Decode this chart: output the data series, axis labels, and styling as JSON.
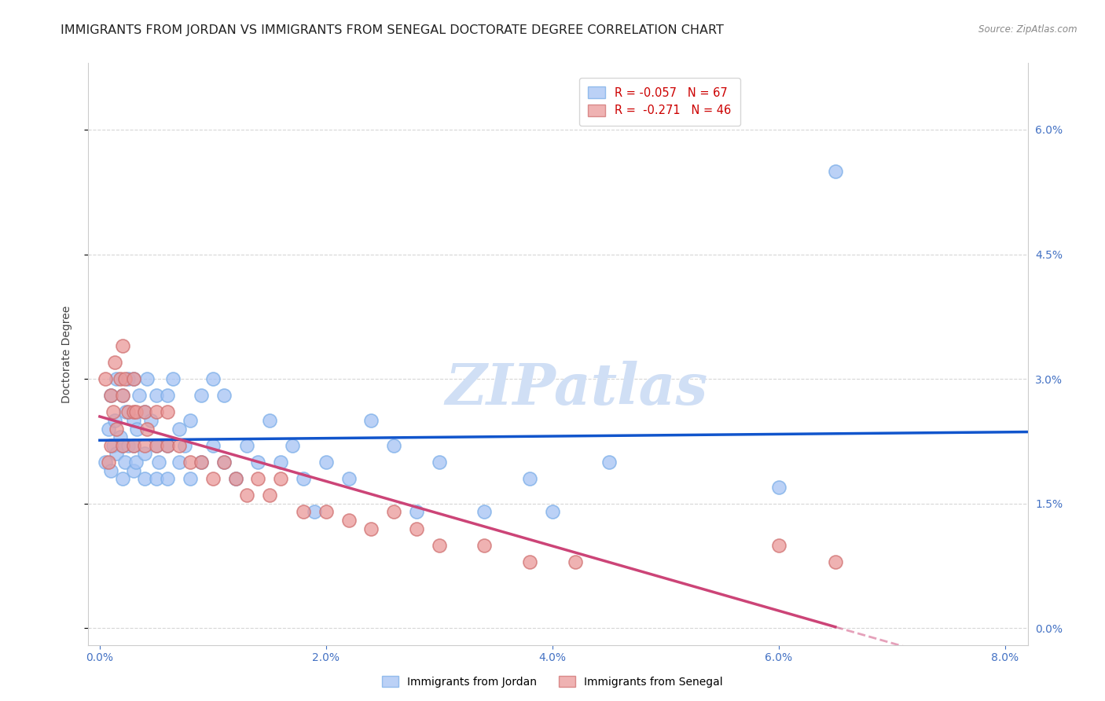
{
  "title": "IMMIGRANTS FROM JORDAN VS IMMIGRANTS FROM SENEGAL DOCTORATE DEGREE CORRELATION CHART",
  "source": "Source: ZipAtlas.com",
  "ylabel": "Doctorate Degree",
  "xlabel_ticks": [
    "0.0%",
    "2.0%",
    "4.0%",
    "6.0%",
    "8.0%"
  ],
  "xlabel_vals": [
    0.0,
    0.02,
    0.04,
    0.06,
    0.08
  ],
  "ytick_labels": [
    "0.0%",
    "1.5%",
    "3.0%",
    "4.5%",
    "6.0%"
  ],
  "ytick_vals": [
    0.0,
    0.015,
    0.03,
    0.045,
    0.06
  ],
  "xlim": [
    -0.001,
    0.082
  ],
  "ylim": [
    -0.002,
    0.068
  ],
  "jordan_color": "#a4c2f4",
  "senegal_color": "#ea9999",
  "jordan_R": -0.057,
  "jordan_N": 67,
  "senegal_R": -0.271,
  "senegal_N": 46,
  "legend_label_jordan": "Immigrants from Jordan",
  "legend_label_senegal": "Immigrants from Senegal",
  "watermark": "ZIPatlas",
  "jordan_x": [
    0.0005,
    0.0008,
    0.001,
    0.001,
    0.0012,
    0.0013,
    0.0015,
    0.0015,
    0.0018,
    0.002,
    0.002,
    0.002,
    0.0022,
    0.0023,
    0.0025,
    0.0025,
    0.003,
    0.003,
    0.003,
    0.003,
    0.0032,
    0.0033,
    0.0035,
    0.004,
    0.004,
    0.004,
    0.0042,
    0.0045,
    0.005,
    0.005,
    0.005,
    0.0052,
    0.006,
    0.006,
    0.006,
    0.0065,
    0.007,
    0.007,
    0.0075,
    0.008,
    0.008,
    0.009,
    0.009,
    0.01,
    0.01,
    0.011,
    0.011,
    0.012,
    0.013,
    0.014,
    0.015,
    0.016,
    0.017,
    0.018,
    0.019,
    0.02,
    0.022,
    0.024,
    0.026,
    0.028,
    0.03,
    0.034,
    0.038,
    0.04,
    0.045,
    0.06,
    0.065
  ],
  "jordan_y": [
    0.02,
    0.024,
    0.019,
    0.028,
    0.022,
    0.025,
    0.021,
    0.03,
    0.023,
    0.018,
    0.022,
    0.028,
    0.02,
    0.026,
    0.022,
    0.03,
    0.019,
    0.022,
    0.025,
    0.03,
    0.02,
    0.024,
    0.028,
    0.018,
    0.021,
    0.026,
    0.03,
    0.025,
    0.018,
    0.022,
    0.028,
    0.02,
    0.018,
    0.022,
    0.028,
    0.03,
    0.02,
    0.024,
    0.022,
    0.018,
    0.025,
    0.02,
    0.028,
    0.022,
    0.03,
    0.02,
    0.028,
    0.018,
    0.022,
    0.02,
    0.025,
    0.02,
    0.022,
    0.018,
    0.014,
    0.02,
    0.018,
    0.025,
    0.022,
    0.014,
    0.02,
    0.014,
    0.018,
    0.014,
    0.02,
    0.017,
    0.055
  ],
  "senegal_x": [
    0.0005,
    0.0008,
    0.001,
    0.001,
    0.0012,
    0.0013,
    0.0015,
    0.0018,
    0.002,
    0.002,
    0.002,
    0.0022,
    0.0025,
    0.003,
    0.003,
    0.003,
    0.0032,
    0.004,
    0.004,
    0.0042,
    0.005,
    0.005,
    0.006,
    0.006,
    0.007,
    0.008,
    0.009,
    0.01,
    0.011,
    0.012,
    0.013,
    0.014,
    0.015,
    0.016,
    0.018,
    0.02,
    0.022,
    0.024,
    0.026,
    0.028,
    0.03,
    0.034,
    0.038,
    0.042,
    0.06,
    0.065
  ],
  "senegal_y": [
    0.03,
    0.02,
    0.028,
    0.022,
    0.026,
    0.032,
    0.024,
    0.03,
    0.022,
    0.028,
    0.034,
    0.03,
    0.026,
    0.022,
    0.026,
    0.03,
    0.026,
    0.022,
    0.026,
    0.024,
    0.022,
    0.026,
    0.022,
    0.026,
    0.022,
    0.02,
    0.02,
    0.018,
    0.02,
    0.018,
    0.016,
    0.018,
    0.016,
    0.018,
    0.014,
    0.014,
    0.013,
    0.012,
    0.014,
    0.012,
    0.01,
    0.01,
    0.008,
    0.008,
    0.01,
    0.008
  ],
  "line_color_jordan": "#1155cc",
  "line_color_senegal": "#cc4477",
  "background_color": "#ffffff",
  "grid_color": "#cccccc",
  "axis_label_color": "#4472c4",
  "title_color": "#222222",
  "title_fontsize": 11.5,
  "axis_fontsize": 10,
  "tick_fontsize": 10,
  "watermark_color": "#d0dff5",
  "watermark_fontsize": 52
}
